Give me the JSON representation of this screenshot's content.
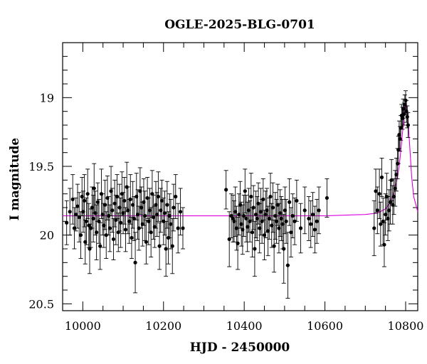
{
  "chart_data": {
    "type": "scatter",
    "title": "OGLE-2025-BLG-0701",
    "xlabel": "HJD - 2450000",
    "ylabel": "I magnitude",
    "xlim": [
      9950,
      10830
    ],
    "ylim": [
      20.55,
      18.6
    ],
    "y_inverted": true,
    "xticks": [
      10000,
      10200,
      10400,
      10600,
      10800
    ],
    "yticks": [
      19,
      19.5,
      20,
      20.5
    ],
    "xtick_labels": [
      "10000",
      "10200",
      "10400",
      "10600",
      "10800"
    ],
    "ytick_labels": [
      "19",
      "19.5",
      "20",
      "20.5"
    ],
    "grid": false,
    "points_color": "#000000",
    "model_color": "#dd00dd",
    "model": {
      "name": "",
      "baseline": 19.86,
      "x": [
        9950,
        10600,
        10700,
        10730,
        10750,
        10760,
        10770,
        10780,
        10785,
        10790,
        10795,
        10800,
        10802,
        10805,
        10810,
        10815,
        10820,
        10830
      ],
      "y": [
        19.86,
        19.86,
        19.85,
        19.84,
        19.81,
        19.77,
        19.7,
        19.58,
        19.47,
        19.33,
        19.16,
        19.05,
        19.05,
        19.12,
        19.35,
        19.58,
        19.72,
        19.83
      ]
    },
    "series": [
      {
        "name": "",
        "points": [
          [
            9960,
            19.91,
            0.16
          ],
          [
            9968,
            19.83,
            0.17
          ],
          [
            9975,
            19.74,
            0.18
          ],
          [
            9979,
            19.95,
            0.15
          ],
          [
            9983,
            19.85,
            0.12
          ],
          [
            9987,
            19.79,
            0.16
          ],
          [
            9991,
            19.87,
            0.18
          ],
          [
            9995,
            20.0,
            0.17
          ],
          [
            9998,
            19.72,
            0.14
          ],
          [
            10001,
            19.83,
            0.15
          ],
          [
            10004,
            19.75,
            0.19
          ],
          [
            10006,
            20.05,
            0.16
          ],
          [
            10009,
            19.9,
            0.17
          ],
          [
            10012,
            19.7,
            0.18
          ],
          [
            10015,
            19.93,
            0.16
          ],
          [
            10017,
            20.1,
            0.18
          ],
          [
            10020,
            19.95,
            0.14
          ],
          [
            10023,
            19.8,
            0.15
          ],
          [
            10026,
            19.88,
            0.17
          ],
          [
            10028,
            19.66,
            0.18
          ],
          [
            10031,
            19.84,
            0.16
          ],
          [
            10034,
            19.98,
            0.2
          ],
          [
            10037,
            19.76,
            0.14
          ],
          [
            10040,
            19.9,
            0.16
          ],
          [
            10043,
            20.08,
            0.17
          ],
          [
            10046,
            19.7,
            0.18
          ],
          [
            10049,
            19.85,
            0.15
          ],
          [
            10052,
            19.93,
            0.16
          ],
          [
            10055,
            19.78,
            0.18
          ],
          [
            10058,
            20.0,
            0.17
          ],
          [
            10061,
            19.73,
            0.16
          ],
          [
            10064,
            19.86,
            0.14
          ],
          [
            10067,
            19.95,
            0.17
          ],
          [
            10070,
            19.68,
            0.18
          ],
          [
            10073,
            19.82,
            0.16
          ],
          [
            10076,
            20.03,
            0.15
          ],
          [
            10079,
            19.77,
            0.17
          ],
          [
            10082,
            19.89,
            0.18
          ],
          [
            10085,
            19.72,
            0.16
          ],
          [
            10088,
            19.98,
            0.14
          ],
          [
            10091,
            19.8,
            0.17
          ],
          [
            10094,
            19.91,
            0.18
          ],
          [
            10097,
            19.7,
            0.16
          ],
          [
            10100,
            19.84,
            0.15
          ],
          [
            10103,
            19.75,
            0.17
          ],
          [
            10106,
            19.96,
            0.16
          ],
          [
            10109,
            19.65,
            0.18
          ],
          [
            10112,
            19.82,
            0.17
          ],
          [
            10115,
            19.9,
            0.16
          ],
          [
            10118,
            19.74,
            0.18
          ],
          [
            10121,
            20.02,
            0.15
          ],
          [
            10124,
            19.78,
            0.17
          ],
          [
            10127,
            19.88,
            0.16
          ],
          [
            10130,
            20.2,
            0.22
          ],
          [
            10133,
            19.72,
            0.17
          ],
          [
            10136,
            19.85,
            0.18
          ],
          [
            10139,
            19.95,
            0.16
          ],
          [
            10142,
            19.68,
            0.17
          ],
          [
            10145,
            19.8,
            0.15
          ],
          [
            10148,
            19.92,
            0.16
          ],
          [
            10151,
            19.76,
            0.17
          ],
          [
            10154,
            19.86,
            0.18
          ],
          [
            10157,
            20.05,
            0.16
          ],
          [
            10160,
            19.73,
            0.15
          ],
          [
            10163,
            19.9,
            0.17
          ],
          [
            10166,
            19.82,
            0.16
          ],
          [
            10169,
            19.98,
            0.18
          ],
          [
            10172,
            19.7,
            0.17
          ],
          [
            10175,
            19.87,
            0.16
          ],
          [
            10178,
            19.94,
            0.15
          ],
          [
            10181,
            19.78,
            0.17
          ],
          [
            10184,
            19.85,
            0.16
          ],
          [
            10187,
            19.72,
            0.18
          ],
          [
            10190,
            20.08,
            0.17
          ],
          [
            10193,
            19.82,
            0.16
          ],
          [
            10196,
            19.75,
            0.15
          ],
          [
            10200,
            19.9,
            0.17
          ],
          [
            10203,
            19.84,
            0.16
          ],
          [
            10206,
            20.1,
            0.2
          ],
          [
            10209,
            19.78,
            0.17
          ],
          [
            10212,
            20.02,
            0.19
          ],
          [
            10215,
            19.86,
            0.16
          ],
          [
            10218,
            19.92,
            0.18
          ],
          [
            10222,
            20.08,
            0.2
          ],
          [
            10225,
            19.8,
            0.17
          ],
          [
            10230,
            19.72,
            0.16
          ],
          [
            10236,
            19.95,
            0.18
          ],
          [
            10242,
            19.83,
            0.17
          ],
          [
            10248,
            19.95,
            0.15
          ]
        ]
      },
      {
        "name": "",
        "points": [
          [
            10355,
            19.67,
            0.14
          ],
          [
            10363,
            20.03,
            0.2
          ],
          [
            10368,
            19.86,
            0.16
          ],
          [
            10372,
            19.88,
            0.17
          ],
          [
            10375,
            19.9,
            0.15
          ],
          [
            10378,
            19.83,
            0.18
          ],
          [
            10381,
            19.95,
            0.16
          ],
          [
            10384,
            20.06,
            0.19
          ],
          [
            10387,
            19.85,
            0.15
          ],
          [
            10390,
            19.78,
            0.17
          ],
          [
            10393,
            19.92,
            0.16
          ],
          [
            10396,
            19.96,
            0.18
          ],
          [
            10399,
            19.86,
            0.15
          ],
          [
            10402,
            19.68,
            0.16
          ],
          [
            10405,
            19.88,
            0.17
          ],
          [
            10408,
            19.94,
            0.18
          ],
          [
            10411,
            19.82,
            0.16
          ],
          [
            10414,
            19.9,
            0.15
          ],
          [
            10417,
            19.72,
            0.17
          ],
          [
            10420,
            19.98,
            0.18
          ],
          [
            10423,
            19.8,
            0.16
          ],
          [
            10426,
            20.1,
            0.2
          ],
          [
            10429,
            19.85,
            0.17
          ],
          [
            10432,
            19.88,
            0.16
          ],
          [
            10435,
            19.77,
            0.15
          ],
          [
            10438,
            19.95,
            0.18
          ],
          [
            10441,
            19.83,
            0.17
          ],
          [
            10444,
            19.9,
            0.16
          ],
          [
            10447,
            19.74,
            0.15
          ],
          [
            10450,
            20.0,
            0.18
          ],
          [
            10453,
            19.85,
            0.17
          ],
          [
            10456,
            19.82,
            0.16
          ],
          [
            10459,
            19.97,
            0.18
          ],
          [
            10462,
            19.88,
            0.15
          ],
          [
            10465,
            19.72,
            0.17
          ],
          [
            10468,
            19.93,
            0.16
          ],
          [
            10471,
            19.8,
            0.18
          ],
          [
            10474,
            20.08,
            0.19
          ],
          [
            10477,
            19.86,
            0.17
          ],
          [
            10480,
            19.9,
            0.16
          ],
          [
            10483,
            19.78,
            0.15
          ],
          [
            10486,
            19.95,
            0.18
          ],
          [
            10489,
            19.84,
            0.17
          ],
          [
            10492,
            19.88,
            0.16
          ],
          [
            10495,
            19.92,
            0.18
          ],
          [
            10498,
            20.1,
            0.25
          ],
          [
            10501,
            19.82,
            0.17
          ],
          [
            10504,
            19.9,
            0.16
          ],
          [
            10508,
            20.22,
            0.24
          ],
          [
            10512,
            19.76,
            0.17
          ],
          [
            10516,
            19.98,
            0.18
          ],
          [
            10520,
            19.86,
            0.16
          ],
          [
            10525,
            19.9,
            0.17
          ],
          [
            10530,
            19.75,
            0.15
          ],
          [
            10540,
            19.95,
            0.18
          ],
          [
            10550,
            19.82,
            0.17
          ],
          [
            10560,
            19.88,
            0.16
          ],
          [
            10565,
            19.92,
            0.17
          ],
          [
            10570,
            19.85,
            0.16
          ],
          [
            10575,
            19.96,
            0.17
          ],
          [
            10580,
            19.9,
            0.16
          ],
          [
            10585,
            19.82,
            0.17
          ],
          [
            10605,
            19.73,
            0.14
          ]
        ]
      },
      {
        "name": "",
        "points": [
          [
            10722,
            19.95,
            0.2
          ],
          [
            10726,
            19.68,
            0.16
          ],
          [
            10730,
            19.82,
            0.17
          ],
          [
            10735,
            19.7,
            0.18
          ],
          [
            10738,
            19.92,
            0.16
          ],
          [
            10741,
            19.58,
            0.14
          ],
          [
            10744,
            19.9,
            0.17
          ],
          [
            10747,
            20.07,
            0.16
          ],
          [
            10750,
            19.85,
            0.15
          ],
          [
            10753,
            19.72,
            0.17
          ],
          [
            10756,
            19.88,
            0.16
          ],
          [
            10759,
            19.82,
            0.15
          ],
          [
            10762,
            19.76,
            0.16
          ],
          [
            10765,
            19.6,
            0.15
          ],
          [
            10768,
            19.78,
            0.14
          ],
          [
            10771,
            19.72,
            0.13
          ],
          [
            10774,
            19.66,
            0.13
          ],
          [
            10777,
            19.56,
            0.12
          ],
          [
            10780,
            19.48,
            0.11
          ],
          [
            10782,
            19.38,
            0.1
          ],
          [
            10784,
            19.27,
            0.1
          ],
          [
            10786,
            19.3,
            0.09
          ],
          [
            10788,
            19.22,
            0.09
          ],
          [
            10790,
            19.13,
            0.08
          ],
          [
            10792,
            19.15,
            0.08
          ],
          [
            10794,
            19.08,
            0.07
          ],
          [
            10796,
            19.12,
            0.08
          ],
          [
            10798,
            19.05,
            0.07
          ],
          [
            10800,
            19.02,
            0.07
          ],
          [
            10802,
            19.1,
            0.08
          ],
          [
            10804,
            19.14,
            0.08
          ],
          [
            10806,
            19.2,
            0.09
          ]
        ]
      }
    ]
  }
}
